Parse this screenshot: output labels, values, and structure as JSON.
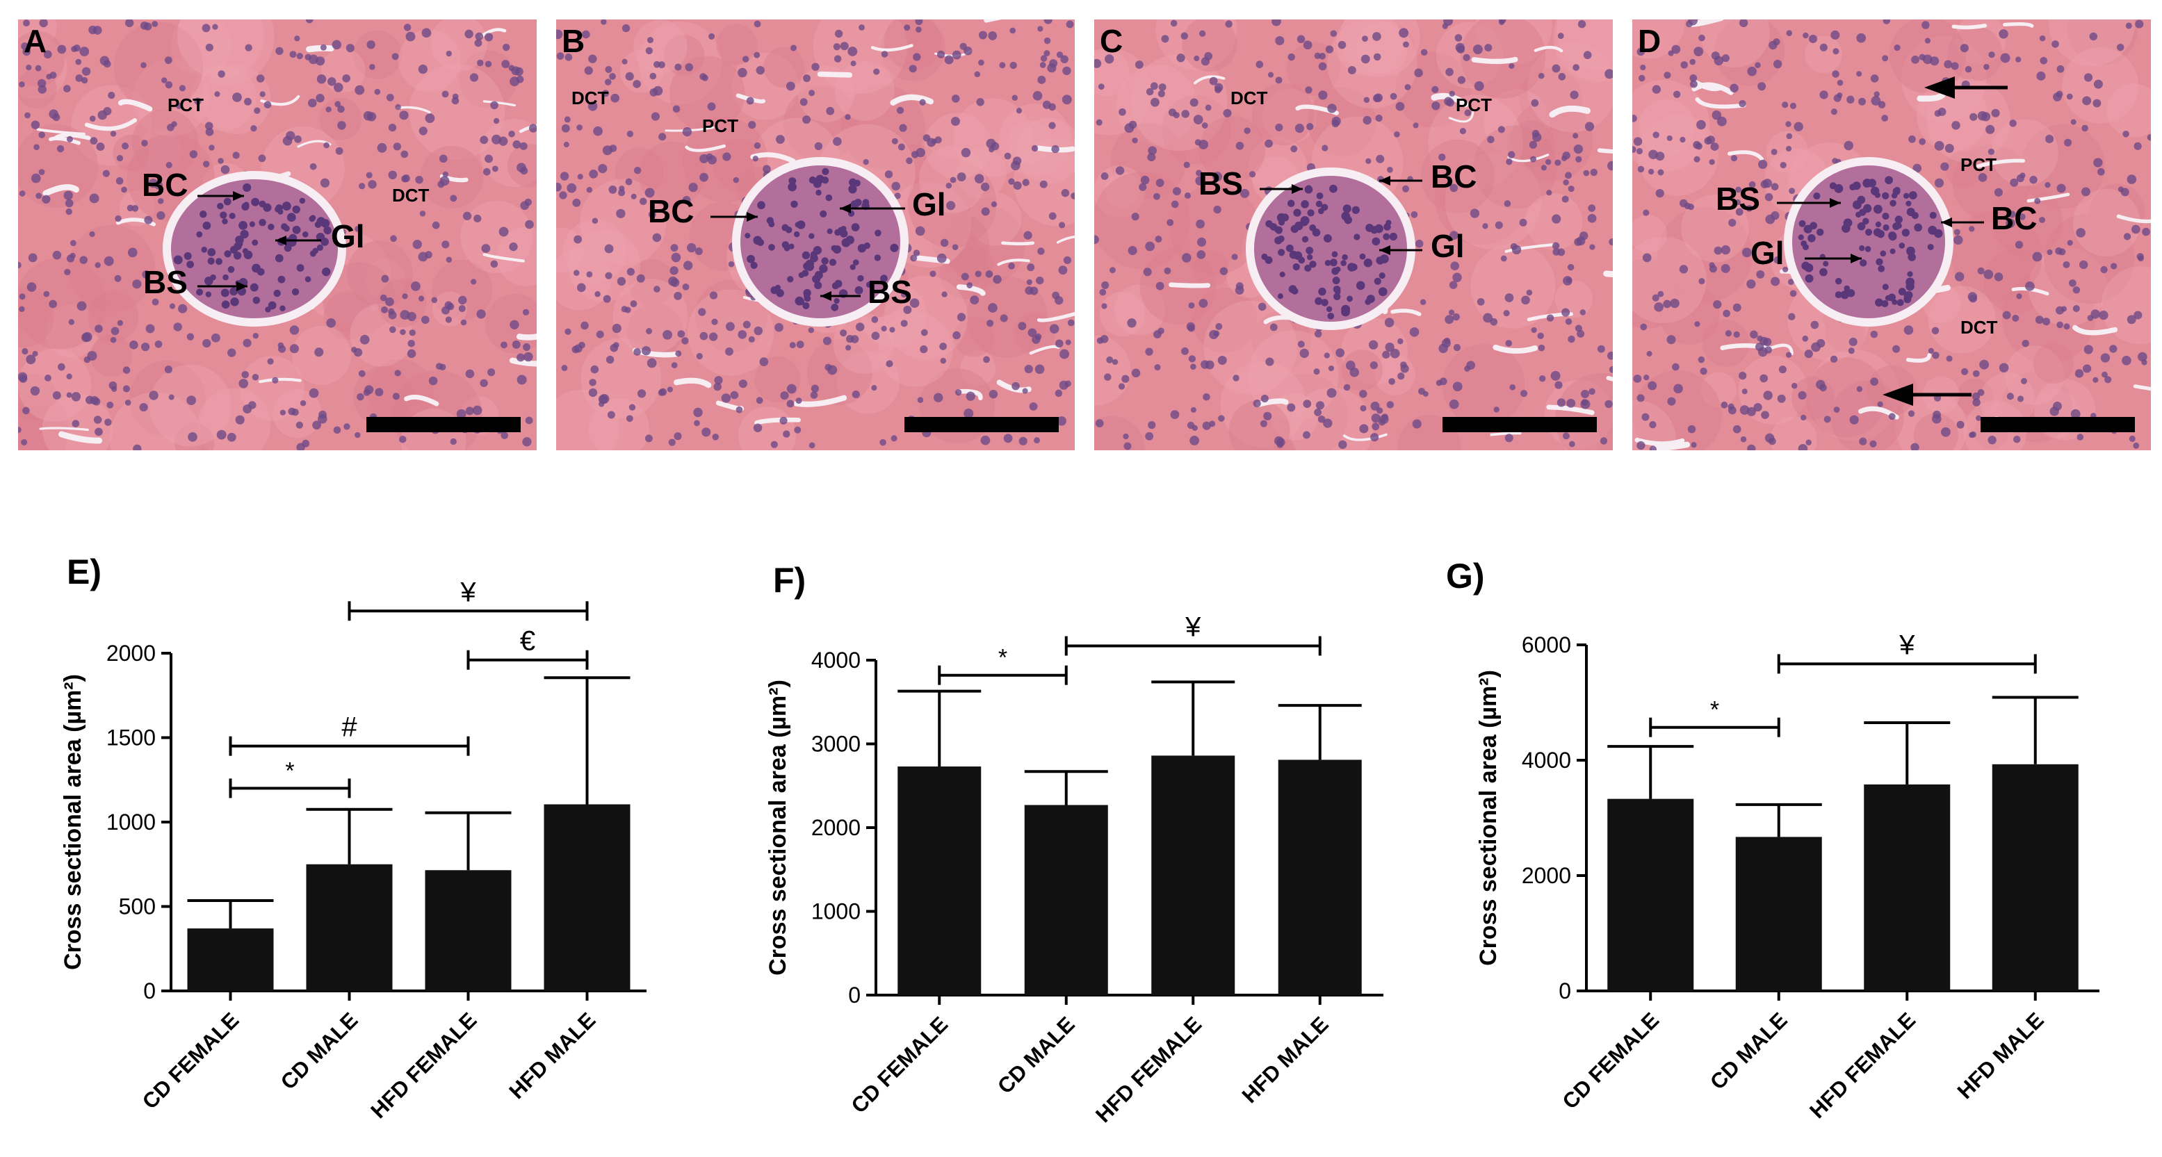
{
  "micrographs": [
    {
      "letter": "A",
      "labels": [
        {
          "text": "PCT",
          "size": "small"
        },
        {
          "text": "DCT",
          "size": "small"
        },
        {
          "text": "BC",
          "size": "large"
        },
        {
          "text": "Gl",
          "size": "large"
        },
        {
          "text": "BS",
          "size": "large"
        }
      ]
    },
    {
      "letter": "B",
      "labels": [
        {
          "text": "DCT",
          "size": "small"
        },
        {
          "text": "PCT",
          "size": "small"
        },
        {
          "text": "BC",
          "size": "large"
        },
        {
          "text": "Gl",
          "size": "large"
        },
        {
          "text": "BS",
          "size": "large"
        }
      ]
    },
    {
      "letter": "C",
      "labels": [
        {
          "text": "DCT",
          "size": "small"
        },
        {
          "text": "PCT",
          "size": "small"
        },
        {
          "text": "BS",
          "size": "large"
        },
        {
          "text": "BC",
          "size": "large"
        },
        {
          "text": "Gl",
          "size": "large"
        }
      ]
    },
    {
      "letter": "D",
      "labels": [
        {
          "text": "PCT",
          "size": "small"
        },
        {
          "text": "BS",
          "size": "large"
        },
        {
          "text": "BC",
          "size": "large"
        },
        {
          "text": "Gl",
          "size": "large"
        },
        {
          "text": "DCT",
          "size": "small"
        }
      ]
    }
  ],
  "chart_data": [
    {
      "letter": "E)",
      "type": "bar",
      "categories": [
        "CD FEMALE",
        "CD MALE",
        "HFD FEMALE",
        "HFD MALE"
      ],
      "values": [
        370,
        750,
        715,
        1105
      ],
      "errors": [
        165,
        325,
        340,
        750
      ],
      "ylabel": "Cross sectional area (µm²)",
      "ylim": [
        0,
        2000
      ],
      "yticks": [
        0,
        500,
        1000,
        1500,
        2000
      ],
      "grid": false,
      "bar_color": "#111111",
      "significance": [
        {
          "from": 0,
          "to": 1,
          "y": 1200,
          "symbol": "*"
        },
        {
          "from": 0,
          "to": 2,
          "y": 1450,
          "symbol": "#"
        },
        {
          "from": 2,
          "to": 3,
          "y": 1960,
          "symbol": "€"
        },
        {
          "from": 1,
          "to": 3,
          "y": 2250,
          "symbol": "¥"
        }
      ]
    },
    {
      "letter": "F)",
      "type": "bar",
      "categories": [
        "CD FEMALE",
        "CD MALE",
        "HFD FEMALE",
        "HFD MALE"
      ],
      "values": [
        2730,
        2270,
        2860,
        2810
      ],
      "errors": [
        900,
        400,
        880,
        650
      ],
      "ylabel": "Cross sectional area (µm²)",
      "ylim": [
        0,
        4000
      ],
      "yticks": [
        0,
        1000,
        2000,
        3000,
        4000
      ],
      "grid": false,
      "bar_color": "#111111",
      "significance": [
        {
          "from": 0,
          "to": 1,
          "y": 3820,
          "symbol": "*"
        },
        {
          "from": 1,
          "to": 3,
          "y": 4170,
          "symbol": "¥"
        }
      ]
    },
    {
      "letter": "G)",
      "type": "bar",
      "categories": [
        "CD FEMALE",
        "CD MALE",
        "HFD FEMALE",
        "HFD MALE"
      ],
      "values": [
        3330,
        2670,
        3580,
        3930
      ],
      "errors": [
        910,
        560,
        1070,
        1160
      ],
      "ylabel": "Cross sectional area (µm²)",
      "ylim": [
        0,
        6000
      ],
      "yticks": [
        0,
        2000,
        4000,
        6000
      ],
      "grid": false,
      "bar_color": "#111111",
      "significance": [
        {
          "from": 0,
          "to": 1,
          "y": 4570,
          "symbol": "*"
        },
        {
          "from": 1,
          "to": 3,
          "y": 5670,
          "symbol": "¥"
        }
      ]
    }
  ]
}
